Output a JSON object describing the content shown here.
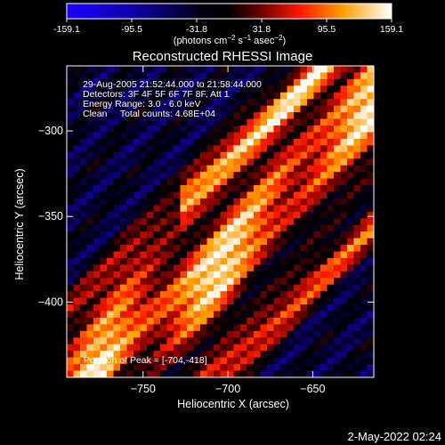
{
  "chart_data": {
    "type": "heatmap",
    "title": "Reconstructed RHESSI Image",
    "xlabel": "Heliocentric X (arcsec)",
    "ylabel": "Heliocentric Y (arcsec)",
    "xlim": [
      -795,
      -614
    ],
    "ylim": [
      -444,
      -262
    ],
    "x_ticks": [
      -750,
      -700,
      -650
    ],
    "y_ticks": [
      -300,
      -350,
      -400
    ],
    "colorbar": {
      "ticks": [
        "-159.1",
        "-95.5",
        "-31.8",
        "31.8",
        "95.5",
        "159.1"
      ],
      "range": [
        -159.1,
        159.1
      ],
      "unit_label": {
        "pre": "(photons cm",
        "sup1": "−2",
        "mid": " s",
        "sup2": "−1",
        "mid2": " asec",
        "sup3": "−2",
        "post": ")"
      }
    },
    "annotations": [
      "29-Aug-2005 21:52:44.000 to 21:58:44.000",
      "Detectors: 3F 4F 5F 6F 7F 8F, Att 1",
      "Energy Range: 3.0 - 6.0 keV",
      "Clean     Total counts: 4.68E+04"
    ],
    "peak_label": "Position of Peak = [-704,-418]",
    "colors": {
      "stops": [
        "#0000ff",
        "#000066",
        "#000000",
        "#660000",
        "#ff0000",
        "#ff8000",
        "#ffff00",
        "#ffffff"
      ],
      "background": "#000000"
    }
  },
  "footer": {
    "timestamp": "2-May-2022 02:24"
  }
}
